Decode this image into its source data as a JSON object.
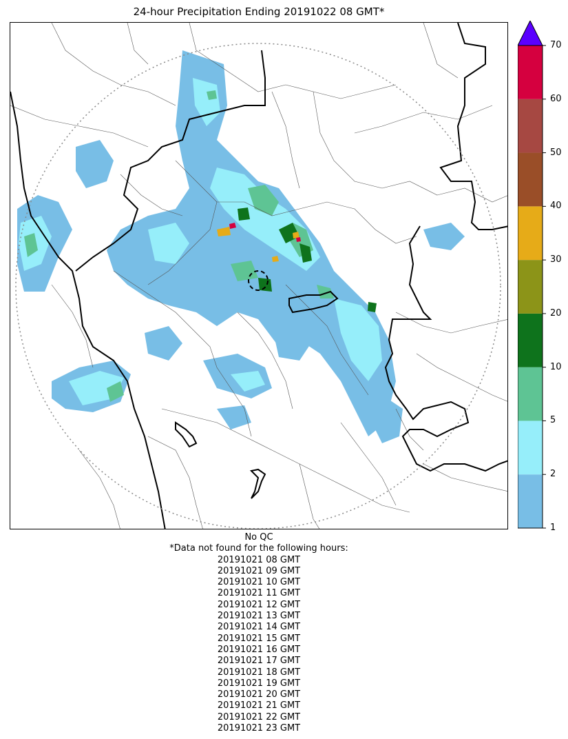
{
  "title": "24-hour Precipitation Ending 20191022 08 GMT*",
  "colorbar": {
    "bins": [
      {
        "label": "1",
        "color": "#78bee6"
      },
      {
        "label": "2",
        "color": "#96eefa"
      },
      {
        "label": "5",
        "color": "#5ec494"
      },
      {
        "label": "10",
        "color": "#0e731c"
      },
      {
        "label": "20",
        "color": "#8c9418"
      },
      {
        "label": "30",
        "color": "#e6ab18"
      },
      {
        "label": "40",
        "color": "#9a4e28"
      },
      {
        "label": "50",
        "color": "#a64842"
      },
      {
        "label": "60",
        "color": "#d5003f"
      },
      {
        "label": "70",
        "color": "#5a00ff"
      }
    ],
    "extend_color": "#5a00ff"
  },
  "footer": {
    "qc_note": "No QC",
    "missing_note": "*Data not found for the following hours:",
    "missing_hours": [
      "20191021 08 GMT",
      "20191021 09 GMT",
      "20191021 10 GMT",
      "20191021 11 GMT",
      "20191021 12 GMT",
      "20191021 13 GMT",
      "20191021 14 GMT",
      "20191021 15 GMT",
      "20191021 16 GMT",
      "20191021 17 GMT",
      "20191021 18 GMT",
      "20191021 19 GMT",
      "20191021 20 GMT",
      "20191021 21 GMT",
      "20191021 22 GMT",
      "20191021 23 GMT"
    ]
  }
}
